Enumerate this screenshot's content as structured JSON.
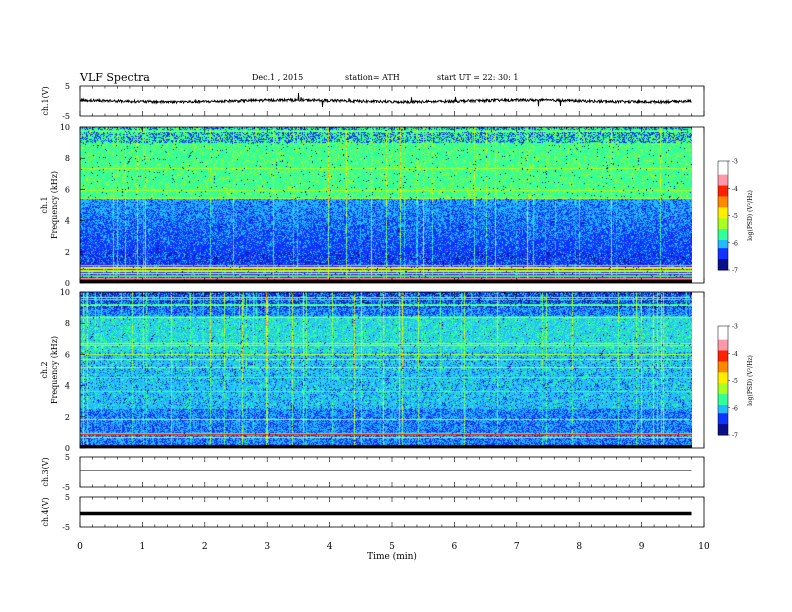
{
  "header": {
    "title": "VLF  Spectra",
    "date": "Dec.1  , 2015",
    "station": "station= ATH",
    "start": "start  UT  =    22: 30: 1"
  },
  "colors": {
    "spectrogram_scale": [
      "#0a0f8a",
      "#1133ff",
      "#22bbff",
      "#33ff99",
      "#aaff22",
      "#ffee00",
      "#ff8800",
      "#ff2200",
      "#ff99aa",
      "#ffffff"
    ],
    "trace": "#000000",
    "axis": "#000000"
  },
  "chart_data": [
    {
      "type": "line",
      "name": "ch1-waveform",
      "ylabel": "ch.1(V)",
      "yticks": [
        "5",
        "-5"
      ],
      "ylim": [
        -5,
        5
      ],
      "xlim": [
        0,
        10
      ],
      "data_end_min": 9.8,
      "approx_level_v": 0
    },
    {
      "type": "heatmap",
      "name": "ch1-spectrogram",
      "ylabel": "ch.1",
      "ylabel2": "Frequency  (kHz)",
      "yticks": [
        "0",
        "2",
        "4",
        "6",
        "8",
        "10"
      ],
      "ylim_khz": [
        0,
        10
      ],
      "xlim_min": [
        0,
        10
      ],
      "colorbar": {
        "label": "log(PSD) (V²/Hz)",
        "ticks": [
          "-3",
          "-4",
          "-5",
          "-6",
          "-7"
        ],
        "range": [
          -7,
          -3
        ]
      }
    },
    {
      "type": "heatmap",
      "name": "ch2-spectrogram",
      "ylabel": "ch.2",
      "ylabel2": "Frequency  (kHz)",
      "yticks": [
        "0",
        "2",
        "4",
        "6",
        "8",
        "10"
      ],
      "ylim_khz": [
        0,
        10
      ],
      "xlim_min": [
        0,
        10
      ],
      "colorbar": {
        "label": "log(PSD) (V²/Hz)",
        "ticks": [
          "-3",
          "-4",
          "-5",
          "-6",
          "-7"
        ],
        "range": [
          -7,
          -3
        ]
      }
    },
    {
      "type": "line",
      "name": "ch3-waveform",
      "ylabel": "ch.3(V)",
      "yticks": [
        "5",
        "-5"
      ],
      "ylim": [
        -5,
        5
      ],
      "approx_level_v": 0.5
    },
    {
      "type": "line",
      "name": "ch4-waveform",
      "ylabel": "ch.4(V)",
      "yticks": [
        "5",
        "-5"
      ],
      "ylim": [
        -5,
        5
      ],
      "approx_level_v": -0.5
    },
    {
      "type": "axis",
      "name": "time-axis",
      "xlabel": "Time  (min)",
      "xticks": [
        "0",
        "1",
        "2",
        "3",
        "4",
        "5",
        "6",
        "7",
        "8",
        "9",
        "10"
      ],
      "xlim": [
        0,
        10
      ]
    }
  ]
}
